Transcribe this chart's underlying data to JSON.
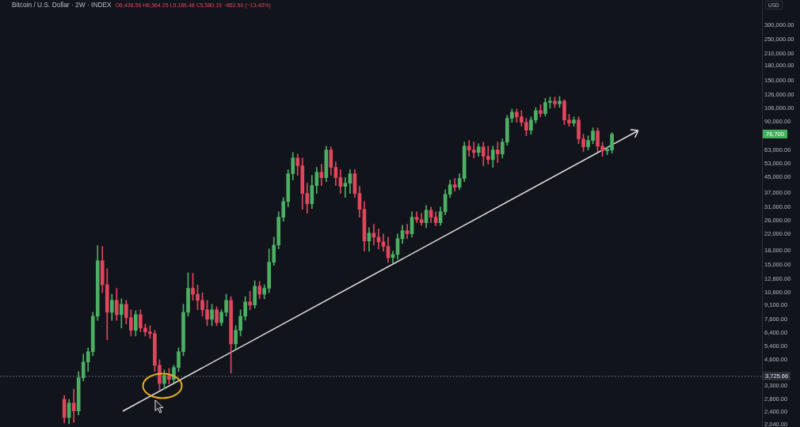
{
  "chart_data": {
    "type": "candlestick",
    "title": "Bitcoin / U.S. Dollar · 2W · INDEX",
    "subtitle": "O6,436.56 H6,564.25 L5,186.48 C5,580.15 −862.50 (−13.43%)",
    "ylabel": "USD",
    "log": true,
    "tick_labels": "y",
    "categories": [
      null,
      null,
      null,
      null,
      null,
      null,
      null,
      null,
      null,
      null,
      null,
      null,
      null,
      null,
      null,
      null,
      null,
      null,
      null,
      null,
      null,
      null,
      null,
      null,
      null,
      null,
      null,
      null,
      null,
      null,
      null,
      null,
      null,
      null,
      null,
      null,
      null,
      null,
      null,
      null,
      null,
      null,
      null,
      null,
      null,
      null,
      null,
      null,
      null,
      null,
      null,
      null,
      null,
      null,
      null,
      null,
      null,
      null,
      null,
      null,
      null,
      null,
      null,
      null,
      null,
      null,
      null,
      null,
      null,
      null,
      null,
      null,
      null,
      null,
      null,
      null,
      null,
      null,
      null,
      null,
      null,
      null,
      null,
      null,
      null,
      null,
      null,
      null,
      null,
      null,
      null,
      null,
      null,
      null,
      null,
      null,
      null,
      null,
      null,
      null,
      null,
      null,
      null,
      null,
      null,
      null,
      null,
      null,
      null,
      null,
      null,
      null,
      null,
      null,
      null,
      null,
      null,
      null,
      null,
      null,
      null,
      null,
      null,
      null,
      null,
      null,
      null,
      null,
      null,
      null,
      null,
      null,
      null,
      null,
      null,
      null,
      null,
      null,
      null,
      null,
      null,
      null,
      null,
      null,
      null,
      null,
      null,
      null,
      null,
      null,
      null,
      null,
      null,
      null,
      null,
      null,
      null,
      null,
      null,
      null
    ],
    "ohlc": [
      null,
      null,
      null,
      null,
      null,
      null,
      null,
      null,
      null,
      null,
      null,
      null,
      null,
      [
        2800,
        2940,
        2080,
        2230
      ],
      [
        2230,
        2800,
        2060,
        2670
      ],
      [
        2670,
        3180,
        2100,
        2420
      ],
      [
        2420,
        3960,
        2300,
        3660
      ],
      [
        3660,
        4920,
        3520,
        4460
      ],
      [
        4460,
        5320,
        3960,
        5070
      ],
      [
        5070,
        8300,
        4820,
        7900
      ],
      [
        7900,
        19100,
        7500,
        15800
      ],
      [
        15800,
        18900,
        10600,
        11700
      ],
      [
        11700,
        14300,
        5880,
        8300
      ],
      [
        8300,
        10400,
        7500,
        9630
      ],
      [
        9630,
        11200,
        7500,
        8060
      ],
      [
        8060,
        9820,
        6820,
        9170
      ],
      [
        9170,
        9630,
        7160,
        7750
      ],
      [
        7750,
        8560,
        6170,
        6620
      ],
      [
        6620,
        8470,
        6170,
        8060
      ],
      [
        8060,
        8560,
        6490,
        6820
      ],
      [
        6820,
        7160,
        6170,
        6490
      ],
      [
        6490,
        7020,
        5990,
        6360
      ],
      [
        6360,
        6620,
        3960,
        4280
      ],
      [
        4280,
        4590,
        3150,
        3410
      ],
      [
        3410,
        4040,
        3180,
        3770
      ],
      [
        3770,
        4120,
        3380,
        3590
      ],
      [
        3590,
        4280,
        3450,
        4160
      ],
      [
        4160,
        5320,
        3960,
        5070
      ],
      [
        5070,
        9170,
        4820,
        8300
      ],
      [
        8300,
        13600,
        7900,
        11200
      ],
      [
        11200,
        13500,
        9630,
        10400
      ],
      [
        10400,
        11700,
        8560,
        9630
      ],
      [
        9630,
        10600,
        7900,
        8560
      ],
      [
        8560,
        9630,
        7020,
        7600
      ],
      [
        7600,
        9170,
        7020,
        8560
      ],
      [
        8560,
        8900,
        7020,
        7300
      ],
      [
        7300,
        8560,
        7020,
        8300
      ],
      [
        8300,
        10400,
        7900,
        9630
      ],
      [
        9630,
        10100,
        3880,
        5590
      ],
      [
        5590,
        7020,
        5220,
        6620
      ],
      [
        6620,
        8560,
        6170,
        7900
      ],
      [
        7900,
        10100,
        7520,
        9440
      ],
      [
        9440,
        10800,
        8560,
        9080
      ],
      [
        9080,
        12300,
        8730,
        11500
      ],
      [
        11500,
        12200,
        9820,
        10400
      ],
      [
        10400,
        11700,
        9820,
        11200
      ],
      [
        11200,
        18300,
        10600,
        15500
      ],
      [
        15500,
        21200,
        14900,
        19200
      ],
      [
        19200,
        29100,
        18300,
        27200
      ],
      [
        27200,
        34800,
        25900,
        33100
      ],
      [
        33100,
        49200,
        30900,
        46800
      ],
      [
        46800,
        61100,
        43300,
        57000
      ],
      [
        57000,
        59900,
        45900,
        51700
      ],
      [
        51700,
        57000,
        30000,
        36600
      ],
      [
        36600,
        41600,
        28600,
        32200
      ],
      [
        32200,
        45900,
        30300,
        40400
      ],
      [
        40400,
        50700,
        36600,
        47700
      ],
      [
        47700,
        52700,
        40400,
        44600
      ],
      [
        44600,
        66100,
        42400,
        63000
      ],
      [
        63000,
        65500,
        45900,
        50700
      ],
      [
        50700,
        54300,
        40400,
        44600
      ],
      [
        44600,
        49200,
        36600,
        40000
      ],
      [
        40000,
        44600,
        34800,
        41600
      ],
      [
        41600,
        49200,
        36600,
        46800
      ],
      [
        46800,
        49200,
        34800,
        36600
      ],
      [
        36600,
        40000,
        27200,
        30000
      ],
      [
        30000,
        33100,
        17800,
        20200
      ],
      [
        20200,
        23900,
        17800,
        22300
      ],
      [
        22300,
        24900,
        19200,
        21200
      ],
      [
        21200,
        23500,
        18300,
        20000
      ],
      [
        20000,
        22100,
        17800,
        18900
      ],
      [
        18900,
        21200,
        15500,
        16400
      ],
      [
        16400,
        17800,
        15300,
        17100
      ],
      [
        17100,
        22100,
        16100,
        20800
      ],
      [
        20800,
        24600,
        19600,
        23000
      ],
      [
        23000,
        24900,
        20800,
        22100
      ],
      [
        22100,
        29100,
        21200,
        27200
      ],
      [
        27200,
        29100,
        25400,
        26400
      ],
      [
        26400,
        28600,
        24600,
        25400
      ],
      [
        25400,
        31500,
        23900,
        29700
      ],
      [
        29700,
        30900,
        25400,
        27200
      ],
      [
        27200,
        29100,
        24400,
        25400
      ],
      [
        25400,
        30900,
        24600,
        29100
      ],
      [
        29100,
        38400,
        28000,
        36200
      ],
      [
        36200,
        43300,
        34800,
        40800
      ],
      [
        40800,
        44100,
        37700,
        39600
      ],
      [
        39600,
        46800,
        38400,
        44100
      ],
      [
        44100,
        69500,
        42400,
        66100
      ],
      [
        66100,
        70900,
        58200,
        63000
      ],
      [
        63000,
        69500,
        57000,
        61100
      ],
      [
        61100,
        68100,
        58200,
        65500
      ],
      [
        65500,
        69500,
        51700,
        58200
      ],
      [
        58200,
        66100,
        52700,
        55900
      ],
      [
        55900,
        66100,
        50700,
        63000
      ],
      [
        63000,
        69500,
        53800,
        59900
      ],
      [
        59900,
        72300,
        57000,
        69500
      ],
      [
        69500,
        97200,
        66800,
        93500
      ],
      [
        93500,
        105000,
        89000,
        101000
      ],
      [
        101000,
        105000,
        89000,
        95300
      ],
      [
        95300,
        103000,
        84700,
        89000
      ],
      [
        89000,
        93500,
        75200,
        80600
      ],
      [
        80600,
        95300,
        76700,
        91600
      ],
      [
        91600,
        107000,
        88100,
        103000
      ],
      [
        103000,
        111000,
        95300,
        99200
      ],
      [
        99200,
        120000,
        96300,
        114000
      ],
      [
        114000,
        122000,
        106000,
        116000
      ],
      [
        116000,
        122000,
        107000,
        112000
      ],
      [
        112000,
        123000,
        107000,
        116000
      ],
      [
        116000,
        118000,
        86400,
        91600
      ],
      [
        91600,
        98200,
        84700,
        88100
      ],
      [
        88100,
        95300,
        84700,
        91600
      ],
      [
        91600,
        95300,
        68100,
        72300
      ],
      [
        72300,
        76700,
        61700,
        65500
      ],
      [
        65500,
        75200,
        63000,
        70900
      ],
      [
        70900,
        83000,
        68100,
        79800
      ],
      [
        79800,
        83000,
        61700,
        66100
      ],
      [
        66100,
        69500,
        58200,
        62300
      ],
      [
        62300,
        65500,
        59300,
        63600
      ],
      [
        63000,
        78200,
        60500,
        76700
      ],
      null,
      null,
      null,
      null,
      null,
      null,
      null,
      null,
      null,
      null,
      null,
      null,
      null,
      null,
      null,
      null,
      null,
      null,
      null,
      null,
      null,
      null,
      null,
      null,
      null,
      null,
      null,
      null,
      null,
      null,
      null
    ],
    "ylim": [
      1980,
      410000
    ],
    "yticks": [
      {
        "value": 2040,
        "label": "2,040.00"
      },
      {
        "value": 2400,
        "label": "2,400.00"
      },
      {
        "value": 2800,
        "label": "2,800.00"
      },
      {
        "value": 3300,
        "label": "3,300.00"
      },
      {
        "value": 4600,
        "label": "4,600.00"
      },
      {
        "value": 5400,
        "label": "5,400.00"
      },
      {
        "value": 6400,
        "label": "6,400.00"
      },
      {
        "value": 7600,
        "label": "7,600.00"
      },
      {
        "value": 9100,
        "label": "9,100.00"
      },
      {
        "value": 10600,
        "label": "10,600.00"
      },
      {
        "value": 12600,
        "label": "12,600.00"
      },
      {
        "value": 15000,
        "label": "15,000.00"
      },
      {
        "value": 18000,
        "label": "18,000.00"
      },
      {
        "value": 22000,
        "label": "22,000.00"
      },
      {
        "value": 26000,
        "label": "26,000.00"
      },
      {
        "value": 31000,
        "label": "31,000.00"
      },
      {
        "value": 37000,
        "label": "37,000.00"
      },
      {
        "value": 45000,
        "label": "45,000.00"
      },
      {
        "value": 53000,
        "label": "53,000.00"
      },
      {
        "value": 63000,
        "label": "63,000.00"
      },
      {
        "value": 90000,
        "label": "90,000.00"
      },
      {
        "value": 106000,
        "label": "106,000.00"
      },
      {
        "value": 126000,
        "label": "126,000.00"
      },
      {
        "value": 150000,
        "label": "150,000.00"
      },
      {
        "value": 180000,
        "label": "180,000.00"
      },
      {
        "value": 210000,
        "label": "210,000.00"
      },
      {
        "value": 250000,
        "label": "250,000.00"
      },
      {
        "value": 300000,
        "label": "300,000.00"
      }
    ],
    "ref_lines": [
      {
        "axis": "y",
        "value": 3725.66,
        "label": "3,725.66",
        "line_style": "dotted",
        "color": "#7d828f"
      }
    ],
    "annotations": [
      {
        "text": "76,700",
        "y": 76700
      }
    ]
  }
}
